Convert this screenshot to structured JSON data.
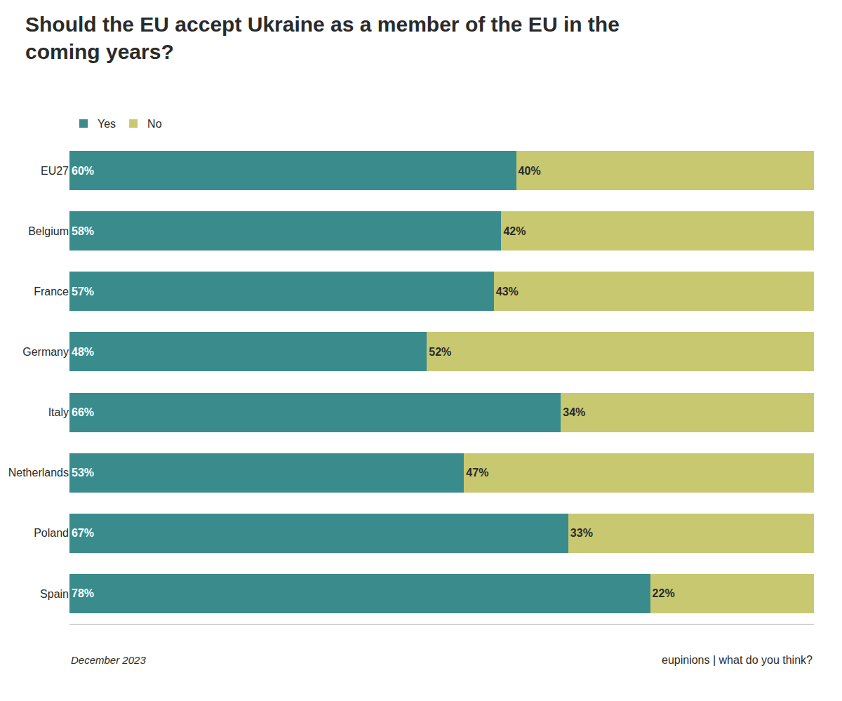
{
  "chart_data": {
    "type": "bar",
    "orientation": "horizontal",
    "stacked": true,
    "title": "Should the EU accept Ukraine as a member of the EU in the coming years?",
    "categories": [
      "EU27",
      "Belgium",
      "France",
      "Germany",
      "Italy",
      "Netherlands",
      "Poland",
      "Spain"
    ],
    "series": [
      {
        "name": "Yes",
        "color": "#3a8c8c",
        "values": [
          60,
          58,
          57,
          48,
          66,
          53,
          67,
          78
        ],
        "value_labels": [
          "60%",
          "58%",
          "57%",
          "48%",
          "66%",
          "53%",
          "67%",
          "78%"
        ]
      },
      {
        "name": "No",
        "color": "#c8c870",
        "values": [
          40,
          42,
          43,
          52,
          34,
          47,
          33,
          22
        ],
        "value_labels": [
          "40%",
          "42%",
          "43%",
          "52%",
          "34%",
          "47%",
          "33%",
          "22%"
        ]
      }
    ],
    "xlim": [
      0,
      100
    ],
    "data_labels": true,
    "tick_labels": "y",
    "grid": false,
    "legend": "top left",
    "annotations": [
      "December 2023",
      "eupinions | what do you think?"
    ]
  }
}
